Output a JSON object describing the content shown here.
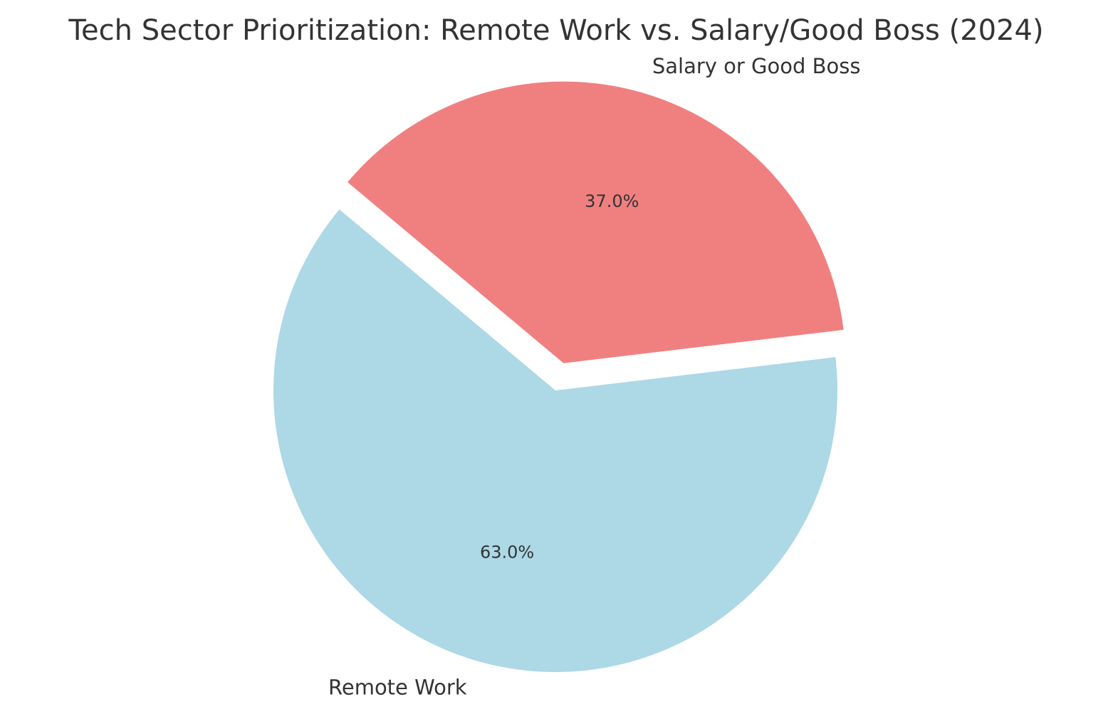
{
  "chart_data": {
    "type": "pie",
    "title": "Tech Sector Prioritization: Remote Work vs. Salary/Good Boss (2024)",
    "slices": [
      {
        "label": "Remote Work",
        "value": 63.0,
        "percent_label": "63.0%",
        "color": "#ADD8E6",
        "exploded": false
      },
      {
        "label": "Salary or Good Boss",
        "value": 37.0,
        "percent_label": "37.0%",
        "color": "#F08080",
        "exploded": true
      }
    ],
    "start_angle_deg": 140,
    "direction": "counterclockwise"
  }
}
